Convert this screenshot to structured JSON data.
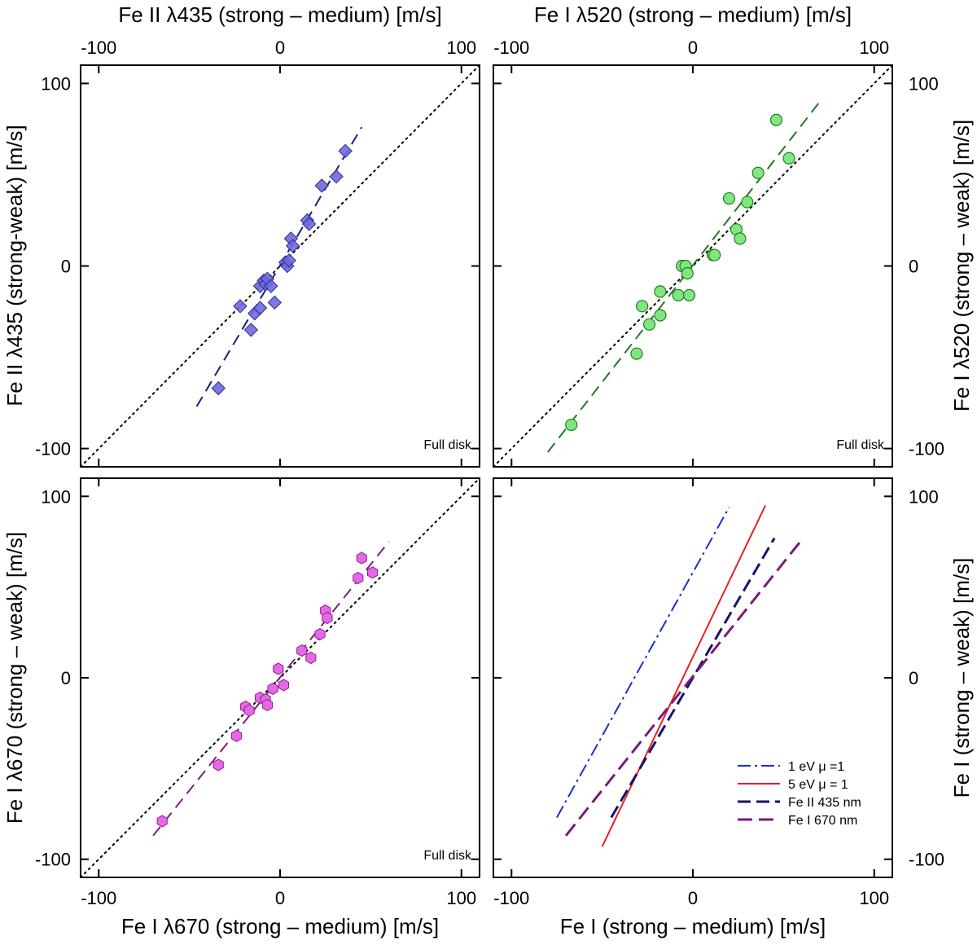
{
  "figure": {
    "top_xlabels": [
      "Fe II λ435 (strong – medium) [m/s]",
      "Fe I λ520 (strong – medium) [m/s]"
    ],
    "bottom_xlabels": [
      "Fe I λ670 (strong – medium) [m/s]",
      "Fe I (strong – medium) [m/s]"
    ],
    "left_ylabels": [
      "Fe II λ435 (strong-weak) [m/s]",
      "Fe I λ670 (strong – weak) [m/s]"
    ],
    "right_ylabels": [
      "Fe I λ520 (strong – weak) [m/s]",
      "Fe I (strong – weak) [m/s]"
    ]
  },
  "chart_data": [
    {
      "id": "fe2-435",
      "type": "scatter",
      "xlim": [
        -110,
        110
      ],
      "ylim": [
        -110,
        110
      ],
      "xticks": [
        -100,
        0,
        100
      ],
      "yticks": [
        -100,
        0,
        100
      ],
      "annotation": "Full disk",
      "marker": "diamond",
      "color": "#6b6bdf",
      "edge": "#2a2a8a",
      "points": [
        [
          -34,
          -67
        ],
        [
          -22,
          -22
        ],
        [
          -16,
          -35
        ],
        [
          -14,
          -26
        ],
        [
          -11,
          -23
        ],
        [
          -11,
          -11
        ],
        [
          -9,
          -8
        ],
        [
          -8,
          -10
        ],
        [
          -7,
          -7
        ],
        [
          -5,
          -11
        ],
        [
          -3,
          -20
        ],
        [
          3,
          2
        ],
        [
          4,
          0
        ],
        [
          5,
          3
        ],
        [
          6,
          15
        ],
        [
          7,
          11
        ],
        [
          15,
          25
        ],
        [
          16,
          23
        ],
        [
          23,
          44
        ],
        [
          31,
          49
        ],
        [
          36,
          63
        ]
      ],
      "fit": {
        "x1": -46,
        "y1": -77,
        "x2": 45,
        "y2": 76,
        "color": "#1a1a80",
        "dash": "14,8"
      },
      "one_to_one": true
    },
    {
      "id": "fe1-520",
      "type": "scatter",
      "xlim": [
        -110,
        110
      ],
      "ylim": [
        -110,
        110
      ],
      "xticks": [
        -100,
        0,
        100
      ],
      "yticks": [
        -100,
        0,
        100
      ],
      "annotation": "Full disk",
      "marker": "circle",
      "color": "#7ee87e",
      "edge": "#2a7a2a",
      "points": [
        [
          -67,
          -87
        ],
        [
          -31,
          -48
        ],
        [
          -28,
          -22
        ],
        [
          -24,
          -32
        ],
        [
          -18,
          -27
        ],
        [
          -18,
          -14
        ],
        [
          -8,
          -16
        ],
        [
          -6,
          0
        ],
        [
          -4,
          0
        ],
        [
          -3,
          -4
        ],
        [
          -2,
          -16
        ],
        [
          11,
          6
        ],
        [
          12,
          6
        ],
        [
          20,
          37
        ],
        [
          24,
          20
        ],
        [
          26,
          15
        ],
        [
          30,
          35
        ],
        [
          36,
          51
        ],
        [
          46,
          80
        ],
        [
          53,
          59
        ]
      ],
      "fit": {
        "x1": -80,
        "y1": -102,
        "x2": 70,
        "y2": 90,
        "color": "#1f7a1f",
        "dash": "14,8"
      },
      "one_to_one": true
    },
    {
      "id": "fe1-670",
      "type": "scatter",
      "xlim": [
        -110,
        110
      ],
      "ylim": [
        -110,
        110
      ],
      "xticks": [
        -100,
        0,
        100
      ],
      "yticks": [
        -100,
        0,
        100
      ],
      "annotation": "Full disk",
      "marker": "hexagon",
      "color": "#e867e8",
      "edge": "#8a1f8a",
      "points": [
        [
          -65,
          -79
        ],
        [
          -34,
          -48
        ],
        [
          -24,
          -32
        ],
        [
          -19,
          -16
        ],
        [
          -17,
          -18
        ],
        [
          -11,
          -11
        ],
        [
          -8,
          -12
        ],
        [
          -7,
          -15
        ],
        [
          -4,
          -6
        ],
        [
          -1,
          5
        ],
        [
          2,
          -4
        ],
        [
          12,
          15
        ],
        [
          17,
          11
        ],
        [
          22,
          24
        ],
        [
          25,
          37
        ],
        [
          26,
          33
        ],
        [
          43,
          55
        ],
        [
          45,
          66
        ],
        [
          51,
          58
        ]
      ],
      "fit": {
        "x1": -70,
        "y1": -87,
        "x2": 60,
        "y2": 75,
        "color": "#7a1f7a",
        "dash": "14,8"
      },
      "one_to_one": true
    },
    {
      "id": "models",
      "type": "line",
      "xlim": [
        -110,
        110
      ],
      "ylim": [
        -110,
        110
      ],
      "xticks": [
        -100,
        0,
        100
      ],
      "yticks": [
        -100,
        0,
        100
      ],
      "series": [
        {
          "name": "1 eV  μ =1",
          "color": "#1a2fd0",
          "dash": "16,5,3,5",
          "width": 2,
          "x1": -75,
          "y1": -77,
          "x2": 20,
          "y2": 94
        },
        {
          "name": "5 eV  μ = 1",
          "color": "#e82020",
          "dash": "",
          "width": 2,
          "x1": -50,
          "y1": -93,
          "x2": 40,
          "y2": 95
        },
        {
          "name": "Fe II  435 nm",
          "color": "#14146e",
          "dash": "16,7",
          "width": 3,
          "x1": -45,
          "y1": -77,
          "x2": 45,
          "y2": 77
        },
        {
          "name": "Fe I  670 nm",
          "color": "#7a1a7a",
          "dash": "18,8",
          "width": 3,
          "x1": -70,
          "y1": -87,
          "x2": 60,
          "y2": 76
        }
      ],
      "legend_position": "bottom-right"
    }
  ]
}
